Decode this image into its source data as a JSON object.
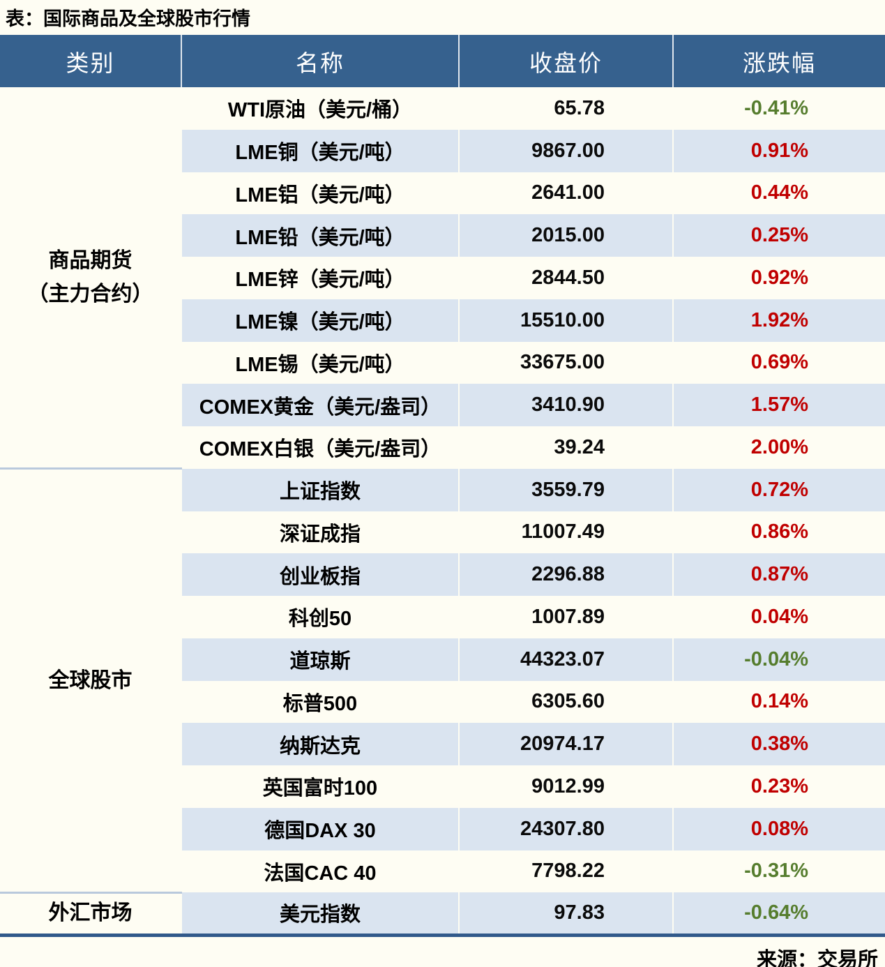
{
  "chart_data": {
    "type": "table",
    "title": "表：国际商品及全球股市行情",
    "source_note": "来源：交易所",
    "columns": [
      "类别",
      "名称",
      "收盘价",
      "涨跌幅"
    ],
    "sections": [
      {
        "category_lines": [
          "商品期货",
          "（主力合约）"
        ],
        "rows": [
          {
            "name": "WTI原油（美元/桶）",
            "close": "65.78",
            "change": "-0.41%",
            "direction": "down"
          },
          {
            "name": "LME铜（美元/吨）",
            "close": "9867.00",
            "change": "0.91%",
            "direction": "up"
          },
          {
            "name": "LME铝（美元/吨）",
            "close": "2641.00",
            "change": "0.44%",
            "direction": "up"
          },
          {
            "name": "LME铅（美元/吨）",
            "close": "2015.00",
            "change": "0.25%",
            "direction": "up"
          },
          {
            "name": "LME锌（美元/吨）",
            "close": "2844.50",
            "change": "0.92%",
            "direction": "up"
          },
          {
            "name": "LME镍（美元/吨）",
            "close": "15510.00",
            "change": "1.92%",
            "direction": "up"
          },
          {
            "name": "LME锡（美元/吨）",
            "close": "33675.00",
            "change": "0.69%",
            "direction": "up"
          },
          {
            "name": "COMEX黄金（美元/盎司）",
            "close": "3410.90",
            "change": "1.57%",
            "direction": "up"
          },
          {
            "name": "COMEX白银（美元/盎司）",
            "close": "39.24",
            "change": "2.00%",
            "direction": "up"
          }
        ]
      },
      {
        "category_lines": [
          "全球股市"
        ],
        "rows": [
          {
            "name": "上证指数",
            "close": "3559.79",
            "change": "0.72%",
            "direction": "up"
          },
          {
            "name": "深证成指",
            "close": "11007.49",
            "change": "0.86%",
            "direction": "up"
          },
          {
            "name": "创业板指",
            "close": "2296.88",
            "change": "0.87%",
            "direction": "up"
          },
          {
            "name": "科创50",
            "close": "1007.89",
            "change": "0.04%",
            "direction": "up"
          },
          {
            "name": "道琼斯",
            "close": "44323.07",
            "change": "-0.04%",
            "direction": "down"
          },
          {
            "name": "标普500",
            "close": "6305.60",
            "change": "0.14%",
            "direction": "up"
          },
          {
            "name": "纳斯达克",
            "close": "20974.17",
            "change": "0.38%",
            "direction": "up"
          },
          {
            "name": "英国富时100",
            "close": "9012.99",
            "change": "0.23%",
            "direction": "up"
          },
          {
            "name": "德国DAX 30",
            "close": "24307.80",
            "change": "0.08%",
            "direction": "up"
          },
          {
            "name": "法国CAC 40",
            "close": "7798.22",
            "change": "-0.31%",
            "direction": "down"
          }
        ]
      },
      {
        "category_lines": [
          "外汇市场"
        ],
        "rows": [
          {
            "name": "美元指数",
            "close": "97.83",
            "change": "-0.64%",
            "direction": "down"
          }
        ]
      }
    ]
  },
  "colors": {
    "header_bg": "#36618E",
    "header_text": "#FFFFFF",
    "row_stripe": "#DAE4F0",
    "row_plain": "#FEFDF3",
    "up_red": "#C00000",
    "down_green": "#567D2E",
    "table_bottom_border": "#31598A",
    "section_divider": "#B9C9DC"
  }
}
